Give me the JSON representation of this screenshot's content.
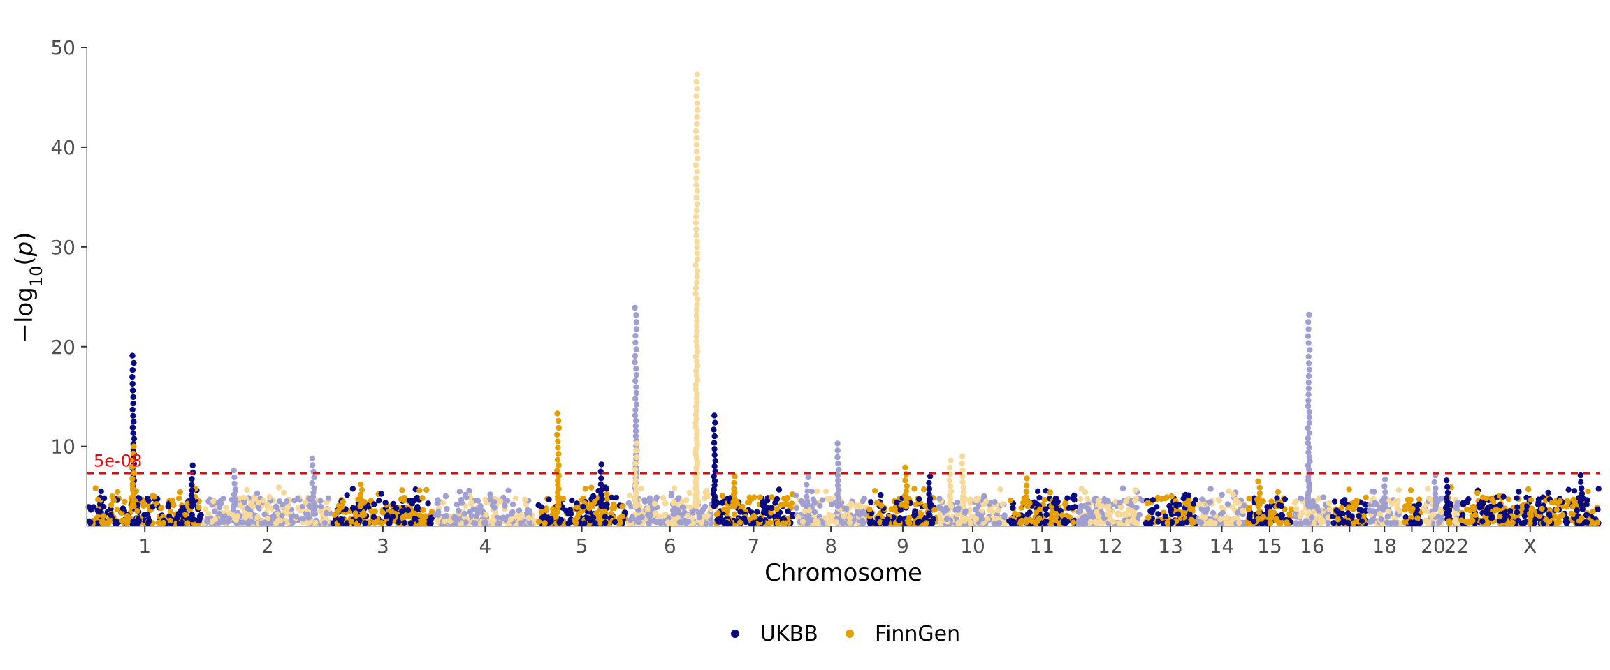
{
  "colors": {
    "ukbb_dark": "#0a0a80",
    "ukbb_light": "#9f9fd2",
    "finngen_dark": "#e69f00",
    "finngen_light": "#f7d99a",
    "threshold": "#ff0000",
    "axis": "#b3b3b3",
    "tick_text": "#4d4d4d"
  },
  "chart_data": {
    "type": "scatter",
    "subtype": "manhattan",
    "title": "",
    "xlabel": "Chromosome",
    "ylabel_parts": {
      "prefix": "−log",
      "subscript": "10",
      "open": "(",
      "var": "p",
      "close": ")"
    },
    "ylim": [
      2,
      50
    ],
    "y_ticks": [
      10,
      20,
      30,
      40,
      50
    ],
    "y_tick_labels": [
      "10",
      "20",
      "30",
      "40",
      "50"
    ],
    "x_range": [
      0,
      1
    ],
    "legend_position": "bottom",
    "grid": false,
    "threshold": {
      "value": 7.3,
      "label": "5e-08",
      "style": "dashed"
    },
    "series": [
      {
        "name": "UKBB",
        "colors": [
          "#0a0a80",
          "#9f9fd2"
        ]
      },
      {
        "name": "FinnGen",
        "colors": [
          "#e69f00",
          "#f7d99a"
        ]
      }
    ],
    "chromosomes": [
      {
        "id": "1",
        "label": "1",
        "start": 0.0,
        "end": 0.0847,
        "peaks": [
          {
            "pos": 0.0338,
            "series": "UKBB",
            "max": 19.1
          },
          {
            "pos": 0.0338,
            "series": "FinnGen",
            "max": 10.0
          },
          {
            "pos": 0.0766,
            "series": "UKBB",
            "max": 8.1
          }
        ]
      },
      {
        "id": "2",
        "label": "2",
        "start": 0.0847,
        "end": 0.1786,
        "peaks": [
          {
            "pos": 0.1076,
            "series": "UKBB",
            "max": 7.6
          },
          {
            "pos": 0.1649,
            "series": "UKBB",
            "max": 8.8
          }
        ]
      },
      {
        "id": "3",
        "label": "3",
        "start": 0.1786,
        "end": 0.2527,
        "peaks": [
          {
            "pos": 0.1997,
            "series": "FinnGen",
            "max": 6.2
          }
        ]
      },
      {
        "id": "4",
        "label": "4",
        "start": 0.2527,
        "end": 0.3277,
        "peaks": []
      },
      {
        "id": "5",
        "label": "5",
        "start": 0.3277,
        "end": 0.3933,
        "peaks": [
          {
            "pos": 0.3432,
            "series": "FinnGen",
            "max": 13.3
          },
          {
            "pos": 0.3747,
            "series": "UKBB",
            "max": 8.2
          }
        ]
      },
      {
        "id": "6",
        "label": "6",
        "start": 0.3933,
        "end": 0.4561,
        "peaks": [
          {
            "pos": 0.3999,
            "series": "UKBB",
            "max": 23.9
          },
          {
            "pos": 0.3999,
            "series": "FinnGen",
            "max": 10.3
          },
          {
            "pos": 0.4441,
            "series": "FinnGen",
            "max": 47.3
          }
        ]
      },
      {
        "id": "7",
        "label": "7",
        "start": 0.4561,
        "end": 0.5151,
        "peaks": [
          {
            "pos": 0.4571,
            "series": "UKBB",
            "max": 13.1
          },
          {
            "pos": 0.4711,
            "series": "FinnGen",
            "max": 7.0
          }
        ]
      },
      {
        "id": "8",
        "label": "8",
        "start": 0.5151,
        "end": 0.5687,
        "peaks": [
          {
            "pos": 0.5246,
            "series": "UKBB",
            "max": 6.9
          },
          {
            "pos": 0.5472,
            "series": "UKBB",
            "max": 10.3
          }
        ]
      },
      {
        "id": "9",
        "label": "9",
        "start": 0.5687,
        "end": 0.6197,
        "peaks": [
          {
            "pos": 0.5965,
            "series": "FinnGen",
            "max": 7.9
          },
          {
            "pos": 0.614,
            "series": "UKBB",
            "max": 7.0
          }
        ]
      },
      {
        "id": "10",
        "label": "10",
        "start": 0.6197,
        "end": 0.6705,
        "peaks": [
          {
            "pos": 0.6288,
            "series": "FinnGen",
            "max": 8.6
          },
          {
            "pos": 0.638,
            "series": "FinnGen",
            "max": 9.0
          }
        ]
      },
      {
        "id": "11",
        "label": "11",
        "start": 0.6705,
        "end": 0.7208,
        "peaks": [
          {
            "pos": 0.6845,
            "series": "FinnGen",
            "max": 6.8
          }
        ]
      },
      {
        "id": "12",
        "label": "12",
        "start": 0.7208,
        "end": 0.7698,
        "peaks": []
      },
      {
        "id": "13",
        "label": "13",
        "start": 0.7698,
        "end": 0.8085,
        "peaks": []
      },
      {
        "id": "14",
        "label": "14",
        "start": 0.8085,
        "end": 0.8445,
        "peaks": []
      },
      {
        "id": "15",
        "label": "15",
        "start": 0.8445,
        "end": 0.8782,
        "peaks": [
          {
            "pos": 0.8537,
            "series": "FinnGen",
            "max": 6.5
          }
        ]
      },
      {
        "id": "16",
        "label": "16",
        "start": 0.8782,
        "end": 0.9064,
        "peaks": [
          {
            "pos": 0.8899,
            "series": "UKBB",
            "max": 23.2
          }
        ]
      },
      {
        "id": "17",
        "label": "",
        "start": 0.9064,
        "end": 0.9326,
        "peaks": []
      },
      {
        "id": "18",
        "label": "18",
        "start": 0.9326,
        "end": 0.9572,
        "peaks": [
          {
            "pos": 0.945,
            "series": "UKBB",
            "max": 6.7
          }
        ]
      },
      {
        "id": "19",
        "label": "",
        "start": 0.9572,
        "end": 0.9725,
        "peaks": []
      },
      {
        "id": "20",
        "label": "20",
        "start": 0.9725,
        "end": 0.9883,
        "peaks": [
          {
            "pos": 0.982,
            "series": "UKBB",
            "max": 7.1
          }
        ]
      },
      {
        "id": "21",
        "label": "",
        "start": 0.9883,
        "end": 0.9948,
        "peaks": [
          {
            "pos": 0.9905,
            "series": "UKBB",
            "max": 6.6
          }
        ]
      },
      {
        "id": "22",
        "label": "22",
        "start": 0.9948,
        "end": 1.0,
        "peaks": []
      },
      {
        "id": "X",
        "label": "X",
        "start": 1.0,
        "end": 1.102,
        "peaks": [
          {
            "pos": 1.088,
            "series": "UKBB",
            "max": 7.1
          }
        ]
      }
    ]
  }
}
